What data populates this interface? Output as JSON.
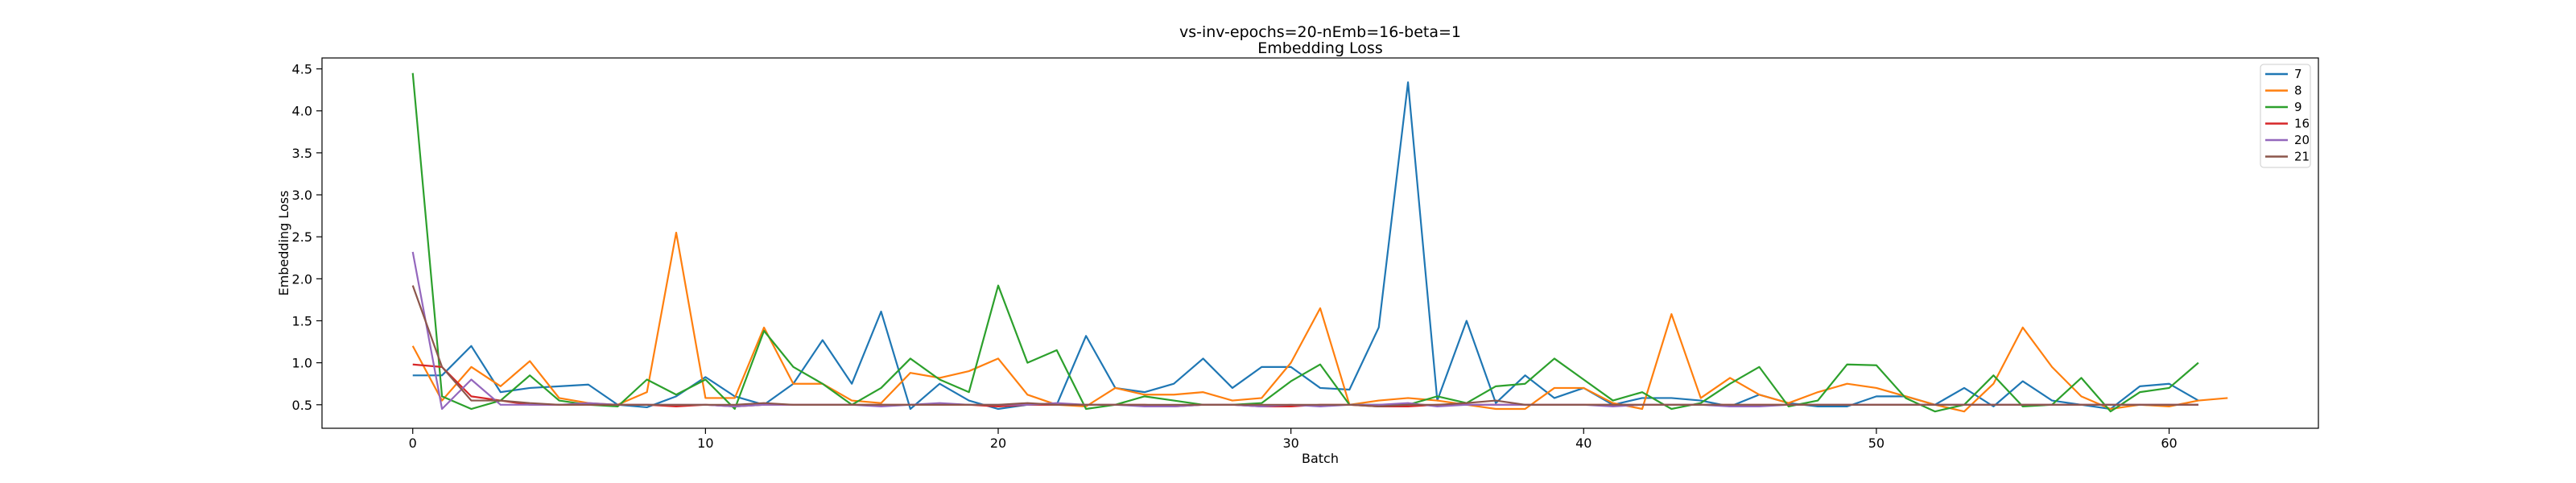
{
  "chart_data": {
    "type": "line",
    "title": "vs-inv-epochs=20-nEmb=16-beta=1",
    "subtitle": "Embedding Loss",
    "xlabel": "Batch",
    "ylabel": "Embedding Loss",
    "xlim": [
      -3.1,
      65.1
    ],
    "ylim": [
      0.22,
      4.63
    ],
    "x_ticks": [
      0,
      10,
      20,
      30,
      40,
      50,
      60
    ],
    "y_ticks": [
      0.5,
      1.0,
      1.5,
      2.0,
      2.5,
      3.0,
      3.5,
      4.0,
      4.5
    ],
    "x_tick_labels": [
      "0",
      "10",
      "20",
      "30",
      "40",
      "50",
      "60"
    ],
    "y_tick_labels": [
      "0.5",
      "1.0",
      "1.5",
      "2.0",
      "2.5",
      "3.0",
      "3.5",
      "4.0",
      "4.5"
    ],
    "grid": false,
    "legend_position": "top-right",
    "series": [
      {
        "name": "7",
        "color": "#1f77b4",
        "values": [
          0.85,
          0.85,
          1.2,
          0.65,
          0.7,
          0.72,
          0.74,
          0.5,
          0.47,
          0.6,
          0.83,
          0.6,
          0.5,
          0.75,
          1.27,
          0.75,
          1.61,
          0.45,
          0.75,
          0.55,
          0.45,
          0.5,
          0.5,
          1.32,
          0.7,
          0.65,
          0.75,
          1.05,
          0.7,
          0.95,
          0.95,
          0.7,
          0.68,
          1.42,
          4.34,
          0.55,
          1.5,
          0.52,
          0.85,
          0.58,
          0.7,
          0.5,
          0.58,
          0.58,
          0.55,
          0.48,
          0.62,
          0.52,
          0.48,
          0.48,
          0.6,
          0.6,
          0.5,
          0.7,
          0.48,
          0.78,
          0.55,
          0.5,
          0.45,
          0.72,
          0.75,
          0.55
        ]
      },
      {
        "name": "8",
        "color": "#ff7f0e",
        "values": [
          1.2,
          0.55,
          0.95,
          0.72,
          1.02,
          0.58,
          0.52,
          0.5,
          0.65,
          2.55,
          0.58,
          0.58,
          1.42,
          0.75,
          0.75,
          0.55,
          0.52,
          0.88,
          0.82,
          0.9,
          1.05,
          0.62,
          0.5,
          0.48,
          0.7,
          0.62,
          0.62,
          0.65,
          0.55,
          0.58,
          1.0,
          1.65,
          0.5,
          0.55,
          0.58,
          0.55,
          0.5,
          0.45,
          0.45,
          0.7,
          0.7,
          0.52,
          0.45,
          1.58,
          0.58,
          0.82,
          0.62,
          0.52,
          0.65,
          0.75,
          0.7,
          0.6,
          0.5,
          0.42,
          0.75,
          1.42,
          0.95,
          0.6,
          0.45,
          0.5,
          0.48,
          0.55,
          0.58
        ]
      },
      {
        "name": "9",
        "color": "#2ca02c",
        "values": [
          4.45,
          0.6,
          0.45,
          0.55,
          0.85,
          0.55,
          0.5,
          0.48,
          0.8,
          0.62,
          0.8,
          0.45,
          1.38,
          0.95,
          0.75,
          0.5,
          0.7,
          1.05,
          0.8,
          0.65,
          1.92,
          1.0,
          1.15,
          0.45,
          0.5,
          0.6,
          0.55,
          0.5,
          0.5,
          0.52,
          0.78,
          0.98,
          0.5,
          0.5,
          0.5,
          0.6,
          0.52,
          0.72,
          0.75,
          1.05,
          0.8,
          0.55,
          0.65,
          0.45,
          0.52,
          0.75,
          0.95,
          0.48,
          0.55,
          0.98,
          0.97,
          0.58,
          0.42,
          0.5,
          0.85,
          0.48,
          0.5,
          0.82,
          0.42,
          0.65,
          0.7,
          1.0
        ]
      },
      {
        "name": "16",
        "color": "#d62728",
        "values": [
          0.98,
          0.95,
          0.6,
          0.55,
          0.5,
          0.5,
          0.5,
          0.5,
          0.5,
          0.48,
          0.5,
          0.48,
          0.5,
          0.5,
          0.5,
          0.5,
          0.5,
          0.5,
          0.5,
          0.5,
          0.48,
          0.5,
          0.5,
          0.5,
          0.5,
          0.5,
          0.48,
          0.5,
          0.5,
          0.48,
          0.48,
          0.5,
          0.5,
          0.48,
          0.48,
          0.5,
          0.5,
          0.5,
          0.5,
          0.5,
          0.5,
          0.5,
          0.5,
          0.5,
          0.5,
          0.5,
          0.5,
          0.5,
          0.5,
          0.5,
          0.5,
          0.5,
          0.5,
          0.5,
          0.5,
          0.5,
          0.5,
          0.5,
          0.5,
          0.5,
          0.5,
          0.5
        ]
      },
      {
        "name": "20",
        "color": "#9467bd",
        "values": [
          2.32,
          0.45,
          0.8,
          0.5,
          0.5,
          0.5,
          0.52,
          0.5,
          0.5,
          0.5,
          0.5,
          0.48,
          0.5,
          0.5,
          0.5,
          0.5,
          0.48,
          0.5,
          0.52,
          0.5,
          0.5,
          0.5,
          0.52,
          0.5,
          0.5,
          0.48,
          0.48,
          0.5,
          0.5,
          0.48,
          0.5,
          0.48,
          0.5,
          0.5,
          0.52,
          0.48,
          0.5,
          0.5,
          0.5,
          0.5,
          0.5,
          0.48,
          0.5,
          0.5,
          0.5,
          0.48,
          0.48,
          0.5,
          0.5,
          0.5,
          0.5,
          0.5,
          0.5,
          0.5,
          0.5,
          0.5,
          0.5,
          0.5,
          0.5,
          0.5,
          0.5,
          0.5
        ]
      },
      {
        "name": "21",
        "color": "#8c564b",
        "values": [
          1.92,
          0.95,
          0.55,
          0.55,
          0.52,
          0.5,
          0.5,
          0.5,
          0.5,
          0.5,
          0.5,
          0.5,
          0.52,
          0.5,
          0.5,
          0.5,
          0.5,
          0.5,
          0.5,
          0.5,
          0.5,
          0.52,
          0.5,
          0.5,
          0.5,
          0.5,
          0.5,
          0.5,
          0.5,
          0.5,
          0.5,
          0.5,
          0.5,
          0.48,
          0.5,
          0.5,
          0.52,
          0.55,
          0.5,
          0.5,
          0.5,
          0.5,
          0.5,
          0.5,
          0.5,
          0.5,
          0.5,
          0.5,
          0.5,
          0.5,
          0.5,
          0.5,
          0.5,
          0.5,
          0.5,
          0.5,
          0.5,
          0.5,
          0.5,
          0.5,
          0.5,
          0.5
        ]
      }
    ]
  }
}
